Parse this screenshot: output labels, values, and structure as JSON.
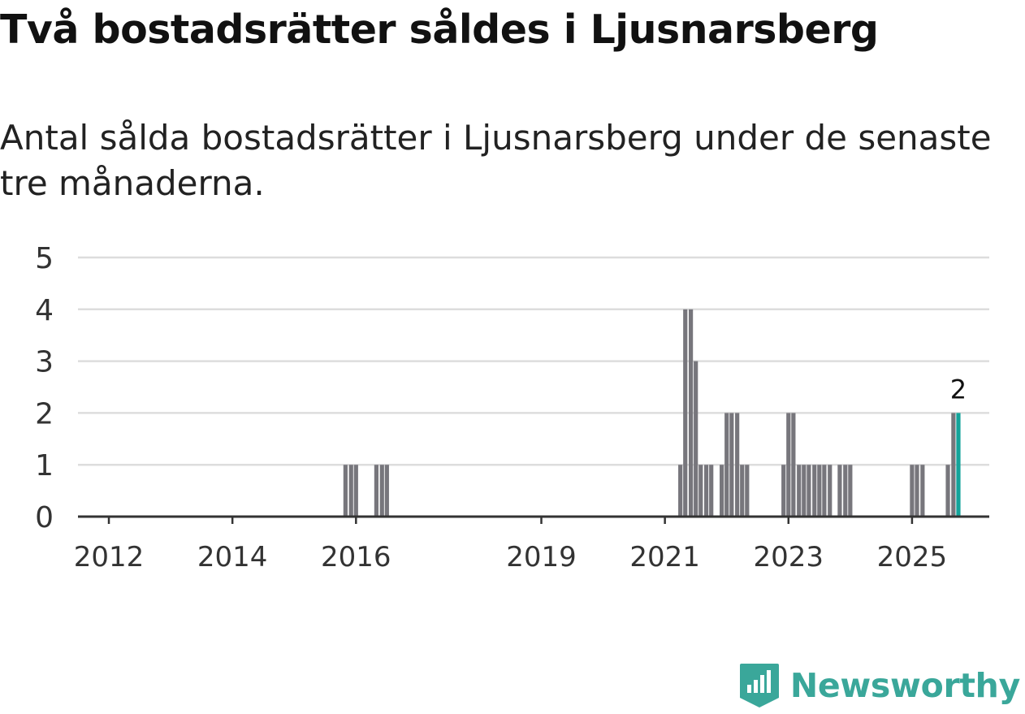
{
  "header": {
    "title": "Två bostadsrätter såldes i Ljusnarsberg",
    "subtitle": "Antal sålda bostadsrätter i Ljusnarsberg under de senaste tre månaderna."
  },
  "brand": {
    "name": "Newsworthy",
    "logo_icon": "newsworthy-bar-chart-icon",
    "color": "#3aa79a"
  },
  "colors": {
    "bar": "#77767c",
    "highlight": "#13a39a",
    "grid": "#dddddd",
    "baseline": "#333333",
    "tick_text": "#333333"
  },
  "chart_data": {
    "type": "bar",
    "title": "Två bostadsrätter såldes i Ljusnarsberg",
    "xlabel": "",
    "ylabel": "",
    "ylim": [
      0,
      5
    ],
    "yticks": [
      "0",
      "1",
      "2",
      "3",
      "4",
      "5"
    ],
    "xlim": [
      2011.5,
      2026.25
    ],
    "xticks": [
      {
        "label": "2012",
        "year": 2012
      },
      {
        "label": "2014",
        "year": 2014
      },
      {
        "label": "2016",
        "year": 2016
      },
      {
        "label": "2019",
        "year": 2019
      },
      {
        "label": "2021",
        "year": 2021
      },
      {
        "label": "2023",
        "year": 2023
      },
      {
        "label": "2025",
        "year": 2025
      }
    ],
    "grid": true,
    "series": [
      {
        "name": "Antal sålda bostadsrätter",
        "period_length_years": 0.0833,
        "points": [
          {
            "period": "2015-11",
            "x": 2015.83,
            "value": 1
          },
          {
            "period": "2015-12",
            "x": 2015.92,
            "value": 1
          },
          {
            "period": "2016-01",
            "x": 2016.0,
            "value": 1
          },
          {
            "period": "2016-04",
            "x": 2016.33,
            "value": 1
          },
          {
            "period": "2016-05",
            "x": 2016.42,
            "value": 1
          },
          {
            "period": "2016-06",
            "x": 2016.5,
            "value": 1
          },
          {
            "period": "2021-03",
            "x": 2021.25,
            "value": 1
          },
          {
            "period": "2021-04",
            "x": 2021.33,
            "value": 4
          },
          {
            "period": "2021-05",
            "x": 2021.42,
            "value": 4
          },
          {
            "period": "2021-06",
            "x": 2021.5,
            "value": 3
          },
          {
            "period": "2021-07",
            "x": 2021.58,
            "value": 1
          },
          {
            "period": "2021-08",
            "x": 2021.67,
            "value": 1
          },
          {
            "period": "2021-09",
            "x": 2021.75,
            "value": 1
          },
          {
            "period": "2021-11",
            "x": 2021.92,
            "value": 1
          },
          {
            "period": "2021-12",
            "x": 2022.0,
            "value": 2
          },
          {
            "period": "2022-01",
            "x": 2022.08,
            "value": 2
          },
          {
            "period": "2022-02",
            "x": 2022.17,
            "value": 2
          },
          {
            "period": "2022-03",
            "x": 2022.25,
            "value": 1
          },
          {
            "period": "2022-04",
            "x": 2022.33,
            "value": 1
          },
          {
            "period": "2022-11",
            "x": 2022.92,
            "value": 1
          },
          {
            "period": "2022-12",
            "x": 2023.0,
            "value": 2
          },
          {
            "period": "2023-01",
            "x": 2023.08,
            "value": 2
          },
          {
            "period": "2023-02",
            "x": 2023.17,
            "value": 1
          },
          {
            "period": "2023-03",
            "x": 2023.25,
            "value": 1
          },
          {
            "period": "2023-04",
            "x": 2023.33,
            "value": 1
          },
          {
            "period": "2023-05",
            "x": 2023.42,
            "value": 1
          },
          {
            "period": "2023-06",
            "x": 2023.5,
            "value": 1
          },
          {
            "period": "2023-07",
            "x": 2023.58,
            "value": 1
          },
          {
            "period": "2023-08",
            "x": 2023.67,
            "value": 1
          },
          {
            "period": "2023-10",
            "x": 2023.83,
            "value": 1
          },
          {
            "period": "2023-11",
            "x": 2023.92,
            "value": 1
          },
          {
            "period": "2023-12",
            "x": 2024.0,
            "value": 1
          },
          {
            "period": "2024-12",
            "x": 2025.0,
            "value": 1
          },
          {
            "period": "2025-01",
            "x": 2025.08,
            "value": 1
          },
          {
            "period": "2025-02",
            "x": 2025.17,
            "value": 1
          },
          {
            "period": "2025-07",
            "x": 2025.58,
            "value": 1
          },
          {
            "period": "2025-08",
            "x": 2025.67,
            "value": 2
          },
          {
            "period": "2025-09",
            "x": 2025.75,
            "value": 2,
            "highlight": true,
            "label": "2"
          }
        ]
      }
    ]
  }
}
